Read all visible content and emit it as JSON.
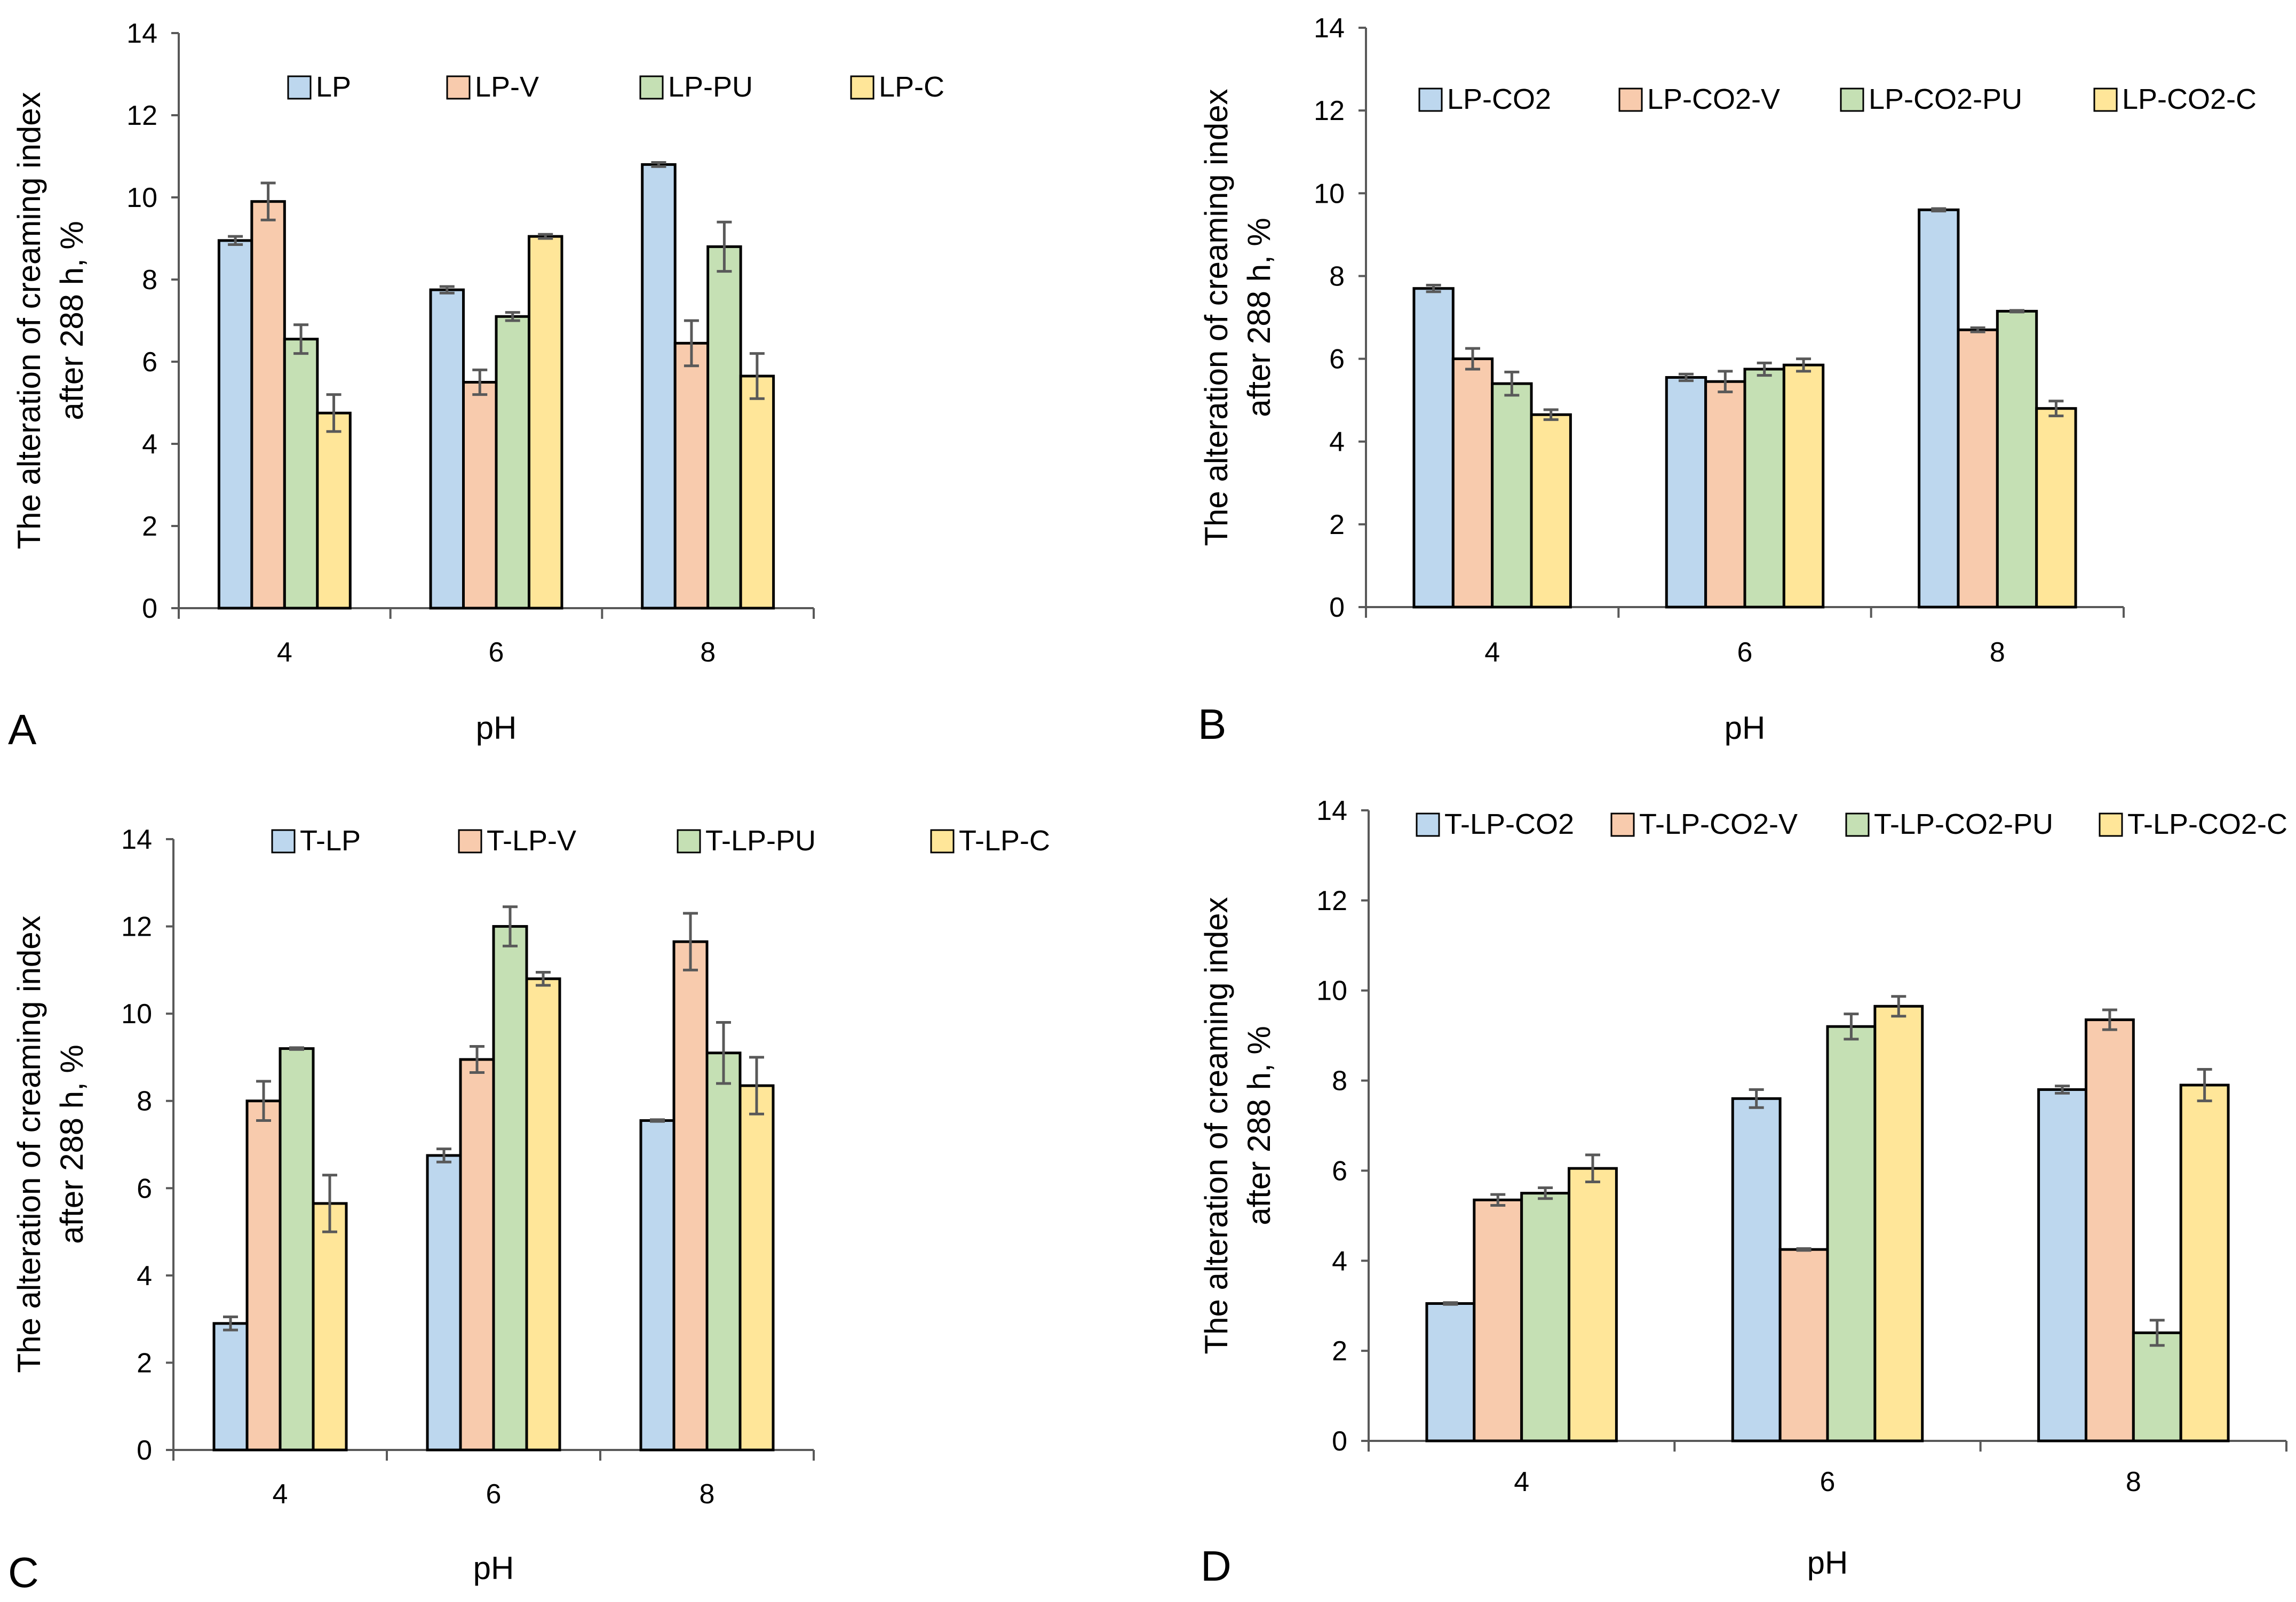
{
  "colors": {
    "blue": "#bdd7ee",
    "orange": "#f8cbad",
    "green": "#c5e0b4",
    "yellow": "#ffe699",
    "bar_stroke": "#000000",
    "error_bar": "#595959",
    "axis": "#595959"
  },
  "chart_data": [
    {
      "panel_label": "A",
      "type": "bar",
      "xlabel": "pH",
      "ylabel_line1": "The alteration of creaming index",
      "ylabel_line2": "after 288 h, %",
      "ylim": [
        0,
        14
      ],
      "yticks": [
        "0",
        "2",
        "4",
        "6",
        "8",
        "10",
        "12",
        "14"
      ],
      "categories": [
        "4",
        "6",
        "8"
      ],
      "legend_position": "top",
      "series": [
        {
          "name": "LP",
          "color": "blue",
          "values": [
            8.95,
            7.75,
            10.8
          ],
          "errors": [
            0.1,
            0.08,
            0.05
          ]
        },
        {
          "name": "LP-V",
          "color": "orange",
          "values": [
            9.9,
            5.5,
            6.45
          ],
          "errors": [
            0.45,
            0.3,
            0.55
          ]
        },
        {
          "name": "LP-PU",
          "color": "green",
          "values": [
            6.55,
            7.1,
            8.8
          ],
          "errors": [
            0.35,
            0.1,
            0.6
          ]
        },
        {
          "name": "LP-C",
          "color": "yellow",
          "values": [
            4.75,
            9.05,
            5.65
          ],
          "errors": [
            0.45,
            0.05,
            0.55
          ]
        }
      ]
    },
    {
      "panel_label": "B",
      "type": "bar",
      "xlabel": "pH",
      "ylabel_line1": "The alteration of creaming index",
      "ylabel_line2": "after 288 h, %",
      "ylim": [
        0,
        14
      ],
      "yticks": [
        "0",
        "2",
        "4",
        "6",
        "8",
        "10",
        "12",
        "14"
      ],
      "categories": [
        "4",
        "6",
        "8"
      ],
      "legend_position": "top",
      "series": [
        {
          "name": "LP-CO2",
          "color": "blue",
          "values": [
            7.7,
            5.55,
            9.6
          ],
          "errors": [
            0.08,
            0.08,
            0.03
          ]
        },
        {
          "name": "LP-CO2-V",
          "color": "orange",
          "values": [
            6.0,
            5.45,
            6.7
          ],
          "errors": [
            0.25,
            0.25,
            0.05
          ]
        },
        {
          "name": "LP-CO2-PU",
          "color": "green",
          "values": [
            5.4,
            5.75,
            7.15
          ],
          "errors": [
            0.28,
            0.15,
            0.02
          ]
        },
        {
          "name": "LP-CO2-C",
          "color": "yellow",
          "values": [
            4.65,
            5.85,
            4.8
          ],
          "errors": [
            0.12,
            0.15,
            0.18
          ]
        }
      ]
    },
    {
      "panel_label": "C",
      "type": "bar",
      "xlabel": "pH",
      "ylabel_line1": "The alteration of creaming index",
      "ylabel_line2": "after 288 h, %",
      "ylim": [
        0,
        14
      ],
      "yticks": [
        "0",
        "2",
        "4",
        "6",
        "8",
        "10",
        "12",
        "14"
      ],
      "categories": [
        "4",
        "6",
        "8"
      ],
      "legend_position": "top",
      "series": [
        {
          "name": "T-LP",
          "color": "blue",
          "values": [
            2.9,
            6.75,
            7.55
          ],
          "errors": [
            0.15,
            0.15,
            0.02
          ]
        },
        {
          "name": "T-LP-V",
          "color": "orange",
          "values": [
            8.0,
            8.95,
            11.65
          ],
          "errors": [
            0.45,
            0.3,
            0.65
          ]
        },
        {
          "name": "T-LP-PU",
          "color": "green",
          "values": [
            9.2,
            12.0,
            9.1
          ],
          "errors": [
            0.02,
            0.45,
            0.7
          ]
        },
        {
          "name": "T-LP-C",
          "color": "yellow",
          "values": [
            5.65,
            10.8,
            8.35
          ],
          "errors": [
            0.65,
            0.15,
            0.65
          ]
        }
      ]
    },
    {
      "panel_label": "D",
      "type": "bar",
      "xlabel": "pH",
      "ylabel_line1": "The alteration of creaming index",
      "ylabel_line2": "after 288 h, %",
      "ylim": [
        0,
        14
      ],
      "yticks": [
        "0",
        "2",
        "4",
        "6",
        "8",
        "10",
        "12",
        "14"
      ],
      "categories": [
        "4",
        "6",
        "8"
      ],
      "legend_position": "top",
      "series": [
        {
          "name": "T-LP-CO2",
          "color": "blue",
          "values": [
            3.05,
            7.6,
            7.8
          ],
          "errors": [
            0.02,
            0.2,
            0.08
          ]
        },
        {
          "name": "T-LP-CO2-V",
          "color": "orange",
          "values": [
            5.35,
            4.25,
            9.35
          ],
          "errors": [
            0.12,
            0.02,
            0.22
          ]
        },
        {
          "name": "T-LP-CO2-PU",
          "color": "green",
          "values": [
            5.5,
            9.2,
            2.4
          ],
          "errors": [
            0.12,
            0.28,
            0.28
          ]
        },
        {
          "name": "T-LP-CO2-C",
          "color": "yellow",
          "values": [
            6.05,
            9.65,
            7.9
          ],
          "errors": [
            0.3,
            0.22,
            0.35
          ]
        }
      ]
    }
  ]
}
